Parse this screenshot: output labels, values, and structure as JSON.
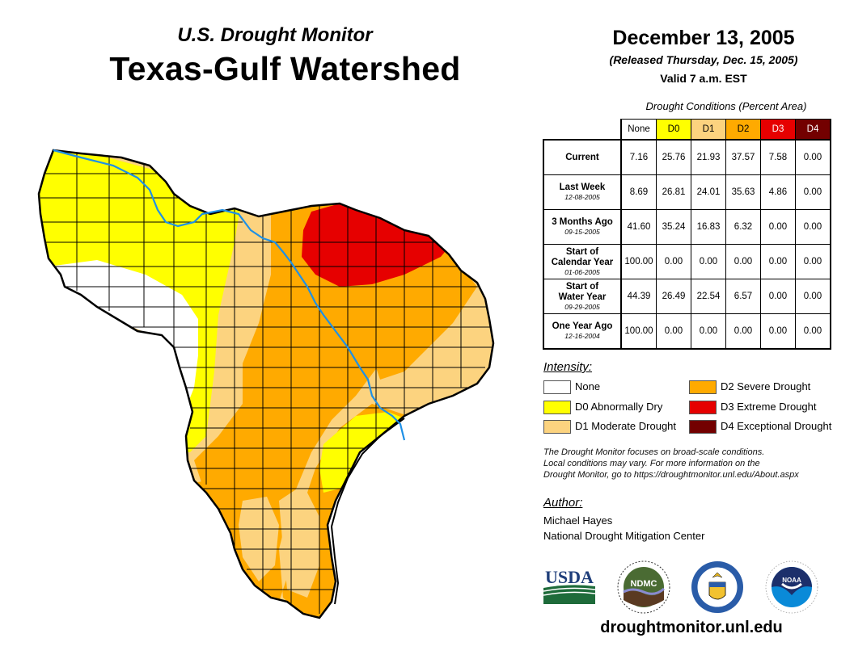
{
  "header": {
    "subtitle": "U.S. Drought Monitor",
    "title": "Texas-Gulf Watershed",
    "date": "December 13, 2005",
    "released": "(Released Thursday, Dec. 15, 2005)",
    "valid": "Valid 7 a.m. EST"
  },
  "table": {
    "caption": "Drought Conditions (Percent Area)",
    "columns": [
      {
        "label": "None",
        "color": "#ffffff",
        "text_color": "#000000"
      },
      {
        "label": "D0",
        "color": "#ffff00",
        "text_color": "#000000"
      },
      {
        "label": "D1",
        "color": "#fcd37f",
        "text_color": "#000000"
      },
      {
        "label": "D2",
        "color": "#ffaa00",
        "text_color": "#000000"
      },
      {
        "label": "D3",
        "color": "#e60000",
        "text_color": "#ffffff"
      },
      {
        "label": "D4",
        "color": "#730000",
        "text_color": "#ffffff"
      }
    ],
    "rows": [
      {
        "label_lines": [
          "Current"
        ],
        "date": "",
        "values": [
          "7.16",
          "25.76",
          "21.93",
          "37.57",
          "7.58",
          "0.00"
        ]
      },
      {
        "label_lines": [
          "Last Week"
        ],
        "date": "12-08-2005",
        "values": [
          "8.69",
          "26.81",
          "24.01",
          "35.63",
          "4.86",
          "0.00"
        ]
      },
      {
        "label_lines": [
          "3 Months Ago"
        ],
        "date": "09-15-2005",
        "values": [
          "41.60",
          "35.24",
          "16.83",
          "6.32",
          "0.00",
          "0.00"
        ]
      },
      {
        "label_lines": [
          "Start of",
          "Calendar Year"
        ],
        "date": "01-06-2005",
        "values": [
          "100.00",
          "0.00",
          "0.00",
          "0.00",
          "0.00",
          "0.00"
        ]
      },
      {
        "label_lines": [
          "Start of",
          "Water Year"
        ],
        "date": "09-29-2005",
        "values": [
          "44.39",
          "26.49",
          "22.54",
          "6.57",
          "0.00",
          "0.00"
        ]
      },
      {
        "label_lines": [
          "One Year Ago"
        ],
        "date": "12-16-2004",
        "values": [
          "100.00",
          "0.00",
          "0.00",
          "0.00",
          "0.00",
          "0.00"
        ]
      }
    ]
  },
  "legend": {
    "title": "Intensity:",
    "items": [
      {
        "label": "None",
        "color": "#ffffff"
      },
      {
        "label": "D0 Abnormally Dry",
        "color": "#ffff00"
      },
      {
        "label": "D1 Moderate Drought",
        "color": "#fcd37f"
      },
      {
        "label": "D2 Severe Drought",
        "color": "#ffaa00"
      },
      {
        "label": "D3 Extreme Drought",
        "color": "#e60000"
      },
      {
        "label": "D4 Exceptional Drought",
        "color": "#730000"
      }
    ]
  },
  "note": {
    "lines": [
      "The Drought Monitor focuses on broad-scale conditions.",
      "Local conditions may vary. For more information on the",
      "Drought Monitor, go to https://droughtmonitor.unl.edu/About.aspx"
    ]
  },
  "author": {
    "label": "Author:",
    "name": "Michael Hayes",
    "organization": "National Drought Mitigation Center"
  },
  "logos": [
    {
      "name": "usda-logo",
      "text": "USDA"
    },
    {
      "name": "ndmc-logo",
      "text": "NDMC"
    },
    {
      "name": "commerce-seal-logo",
      "text": ""
    },
    {
      "name": "noaa-logo",
      "text": "NOAA"
    }
  ],
  "website": "droughtmonitor.unl.edu",
  "map": {
    "region": "Texas-Gulf Watershed",
    "river_color": "#1e90e6",
    "border_color": "#000000"
  }
}
